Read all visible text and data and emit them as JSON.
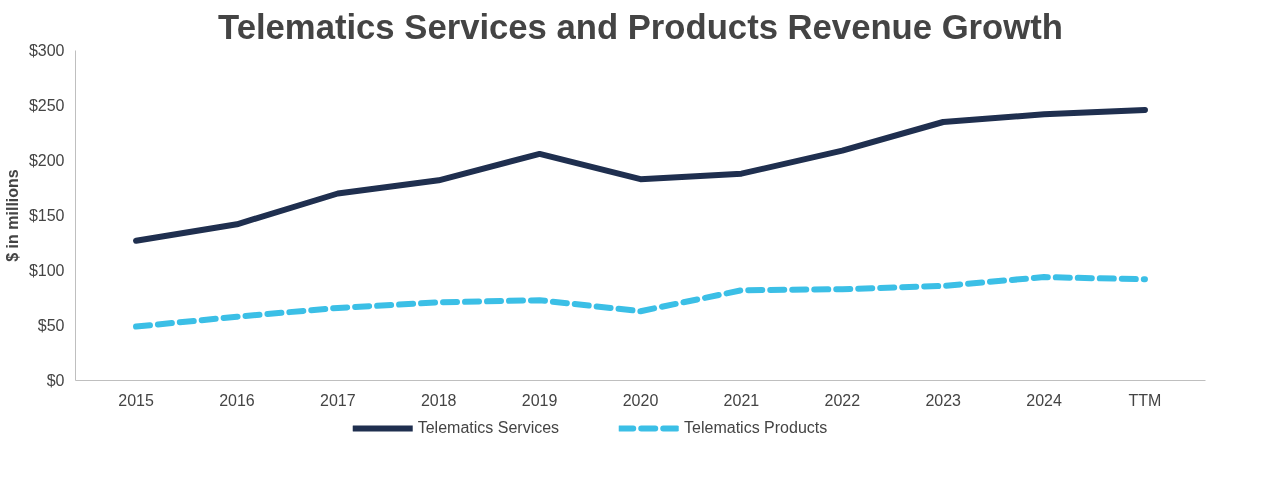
{
  "chart_data": {
    "type": "line",
    "title": "Telematics Services and Products Revenue Growth",
    "ylabel": "$ in millions",
    "categories": [
      "2015",
      "2016",
      "2017",
      "2018",
      "2019",
      "2020",
      "2021",
      "2022",
      "2023",
      "2024",
      "TTM"
    ],
    "ylim": [
      0,
      300
    ],
    "yticks": [
      {
        "value": 0,
        "label": "$0"
      },
      {
        "value": 50,
        "label": "$50"
      },
      {
        "value": 100,
        "label": "$100"
      },
      {
        "value": 150,
        "label": "$150"
      },
      {
        "value": 200,
        "label": "$200"
      },
      {
        "value": 250,
        "label": "$250"
      },
      {
        "value": 300,
        "label": "$300"
      }
    ],
    "grid": false,
    "legend": "bottom",
    "series": [
      {
        "name": "Telematics Services",
        "color": "#1f2f4f",
        "line_style": "solid",
        "values": [
          127,
          142,
          170,
          182,
          206,
          183,
          188,
          209,
          235,
          242,
          246
        ]
      },
      {
        "name": "Telematics Products",
        "color": "#3bbfe6",
        "line_style": "dashed",
        "values": [
          49,
          58,
          66,
          71,
          73,
          63,
          82,
          83,
          86,
          94,
          92
        ]
      }
    ]
  }
}
